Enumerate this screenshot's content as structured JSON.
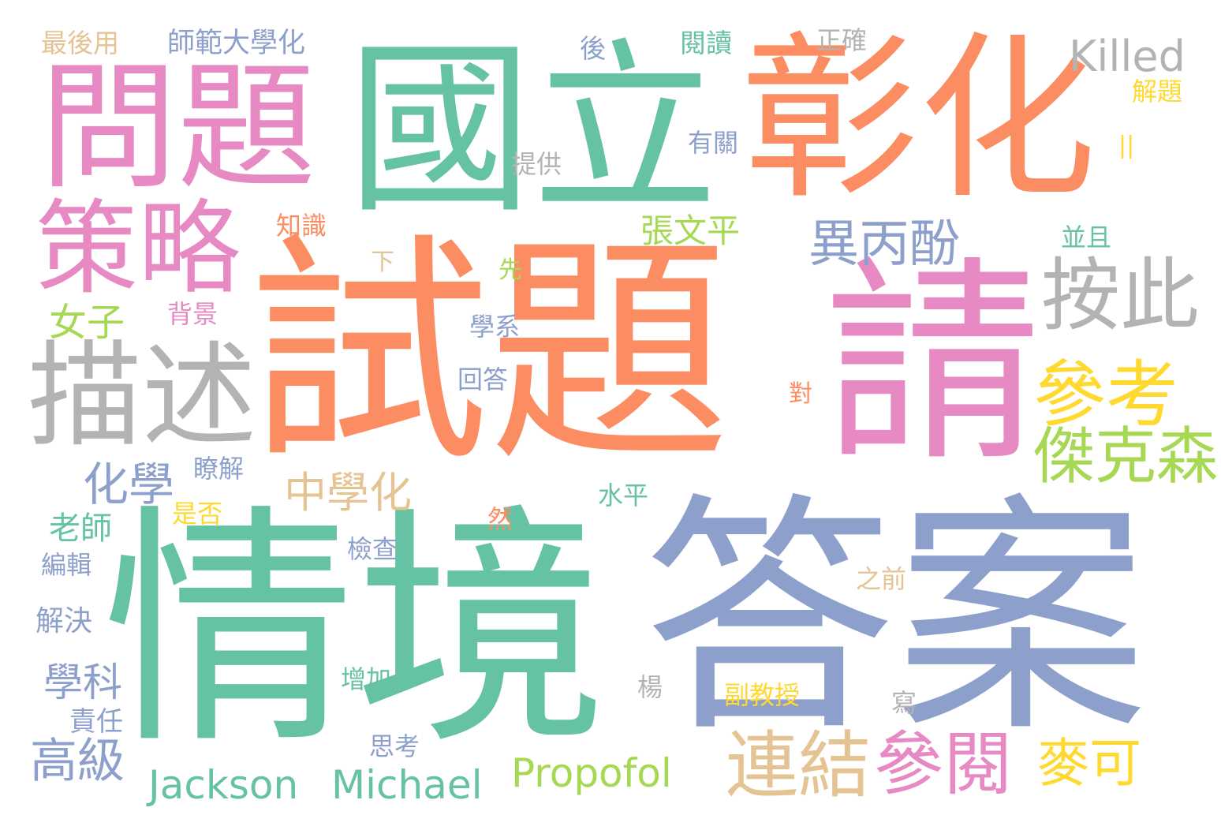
{
  "palette": {
    "green": "#66c2a5",
    "orange": "#fc8d62",
    "blue": "#8da0cb",
    "pink": "#e78ac3",
    "lime": "#a6d854",
    "yellow": "#ffd92f",
    "tan": "#e5c494",
    "gray": "#b3b3b3"
  },
  "words": [
    {
      "text": "試題",
      "color": "#fc8d62"
    },
    {
      "text": "情境",
      "color": "#66c2a5"
    },
    {
      "text": "答案",
      "color": "#8da0cb"
    },
    {
      "text": "國立",
      "color": "#66c2a5"
    },
    {
      "text": "彰化",
      "color": "#fc8d62"
    },
    {
      "text": "請",
      "color": "#e78ac3"
    },
    {
      "text": "問題",
      "color": "#e78ac3"
    },
    {
      "text": "策略",
      "color": "#e78ac3"
    },
    {
      "text": "描述",
      "color": "#b3b3b3"
    },
    {
      "text": "按此",
      "color": "#b3b3b3"
    },
    {
      "text": "參考",
      "color": "#ffd92f"
    },
    {
      "text": "傑克森",
      "color": "#a6d854"
    },
    {
      "text": "連結",
      "color": "#e5c494"
    },
    {
      "text": "參閱",
      "color": "#e78ac3"
    },
    {
      "text": "異丙酚",
      "color": "#8da0cb"
    },
    {
      "text": "Killed",
      "color": "#b3b3b3"
    },
    {
      "text": "Jackson",
      "color": "#66c2a5"
    },
    {
      "text": "Michael",
      "color": "#66c2a5"
    },
    {
      "text": "Propofol",
      "color": "#a6d854"
    },
    {
      "text": "化學",
      "color": "#8da0cb"
    },
    {
      "text": "中學化",
      "color": "#e5c494"
    },
    {
      "text": "麥可",
      "color": "#ffd92f"
    },
    {
      "text": "高級",
      "color": "#8da0cb"
    },
    {
      "text": "女子",
      "color": "#a6d854"
    },
    {
      "text": "張文平",
      "color": "#a6d854"
    },
    {
      "text": "學科",
      "color": "#8da0cb"
    },
    {
      "text": "老師",
      "color": "#66c2a5"
    },
    {
      "text": "師範大學化",
      "color": "#8da0cb"
    },
    {
      "text": "最後用",
      "color": "#e5c494"
    },
    {
      "text": "後",
      "color": "#8da0cb"
    },
    {
      "text": "閱讀",
      "color": "#66c2a5"
    },
    {
      "text": "正確",
      "color": "#b3b3b3"
    },
    {
      "text": "解題",
      "color": "#ffd92f"
    },
    {
      "text": "||",
      "color": "#ffd92f"
    },
    {
      "text": "有關",
      "color": "#8da0cb"
    },
    {
      "text": "提供",
      "color": "#b3b3b3"
    },
    {
      "text": "知識",
      "color": "#fc8d62"
    },
    {
      "text": "並且",
      "color": "#66c2a5"
    },
    {
      "text": "下",
      "color": "#e5c494"
    },
    {
      "text": "先",
      "color": "#a6d854"
    },
    {
      "text": "背景",
      "color": "#e78ac3"
    },
    {
      "text": "學系",
      "color": "#8da0cb"
    },
    {
      "text": "回答",
      "color": "#8da0cb"
    },
    {
      "text": "對",
      "color": "#fc8d62"
    },
    {
      "text": "瞭解",
      "color": "#8da0cb"
    },
    {
      "text": "是否",
      "color": "#ffd92f"
    },
    {
      "text": "水平",
      "color": "#66c2a5"
    },
    {
      "text": "然",
      "color": "#fc8d62"
    },
    {
      "text": "編輯",
      "color": "#8da0cb"
    },
    {
      "text": "檢查",
      "color": "#8da0cb"
    },
    {
      "text": "之前",
      "color": "#e5c494"
    },
    {
      "text": "解決",
      "color": "#8da0cb"
    },
    {
      "text": "增加",
      "color": "#66c2a5"
    },
    {
      "text": "楊",
      "color": "#b3b3b3"
    },
    {
      "text": "副教授",
      "color": "#ffd92f"
    },
    {
      "text": "寫",
      "color": "#b3b3b3"
    },
    {
      "text": "責任",
      "color": "#8da0cb"
    },
    {
      "text": "思考",
      "color": "#8da0cb"
    }
  ]
}
